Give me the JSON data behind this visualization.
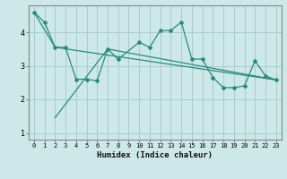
{
  "xlabel": "Humidex (Indice chaleur)",
  "bg_color": "#cce8e8",
  "grid_color": "#aacccc",
  "line_color": "#2a8a7e",
  "xlim": [
    -0.5,
    23.5
  ],
  "ylim": [
    0.8,
    4.8
  ],
  "yticks": [
    1,
    2,
    3,
    4
  ],
  "xticks": [
    0,
    1,
    2,
    3,
    4,
    5,
    6,
    7,
    8,
    9,
    10,
    11,
    12,
    13,
    14,
    15,
    16,
    17,
    18,
    19,
    20,
    21,
    22,
    23
  ],
  "line1_x": [
    0,
    1,
    2,
    3,
    4,
    5,
    6,
    7,
    8,
    10,
    11,
    12,
    13,
    14,
    15,
    16,
    17,
    18,
    19,
    20,
    21,
    22,
    23
  ],
  "line1_y": [
    4.6,
    4.3,
    3.55,
    3.55,
    2.6,
    2.6,
    2.55,
    3.5,
    3.2,
    3.7,
    3.55,
    4.05,
    4.05,
    4.3,
    3.2,
    3.2,
    2.65,
    2.35,
    2.35,
    2.4,
    3.15,
    2.7,
    2.58
  ],
  "line2_x": [
    0,
    2,
    23
  ],
  "line2_y": [
    4.6,
    3.55,
    2.58
  ],
  "line3_x": [
    2,
    7,
    23
  ],
  "line3_y": [
    1.45,
    3.5,
    2.58
  ],
  "marker_x": [
    0,
    1,
    2,
    3,
    6,
    7,
    10,
    11,
    12,
    13,
    14,
    15,
    16,
    17,
    18,
    19,
    20,
    21,
    22,
    23
  ],
  "marker_y": [
    4.6,
    4.3,
    3.55,
    3.55,
    2.55,
    3.5,
    3.7,
    3.55,
    4.05,
    4.05,
    4.3,
    3.2,
    3.2,
    2.65,
    2.35,
    2.35,
    2.4,
    3.15,
    2.7,
    2.58
  ]
}
